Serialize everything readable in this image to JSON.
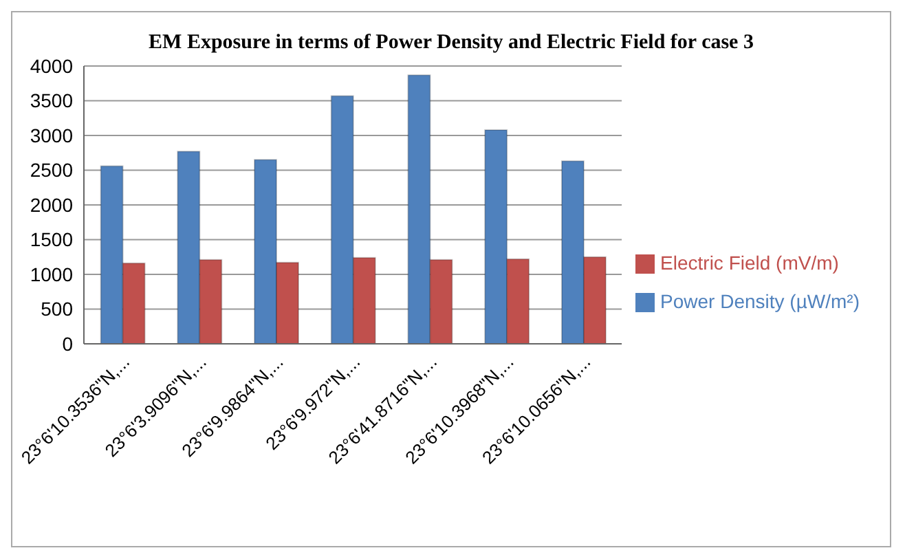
{
  "chart_data": {
    "type": "bar",
    "title": "EM Exposure in terms of Power Density and Electric Field for case 3",
    "categories": [
      "23°6'10.3536\"N,...",
      "23°6'3.9096\"N,...",
      "23°6'9.9864\"N,...",
      "23°6'9.972\"N,...",
      "23°6'41.8716\"N,...",
      "23°6'10.3968\"N,...",
      "23°6'10.0656\"N,..."
    ],
    "series": [
      {
        "name": "Power Density (µW/m²)",
        "color": "#4f81bd",
        "values": [
          2560,
          2770,
          2650,
          3570,
          3870,
          3080,
          2630
        ]
      },
      {
        "name": "Electric Field (mV/m)",
        "color": "#c0504d",
        "values": [
          1160,
          1210,
          1170,
          1240,
          1210,
          1220,
          1250
        ]
      }
    ],
    "ylim": [
      0,
      4000
    ],
    "yticks": [
      0,
      500,
      1000,
      1500,
      2000,
      2500,
      3000,
      3500,
      4000
    ],
    "grid": "y",
    "legend": "right"
  }
}
